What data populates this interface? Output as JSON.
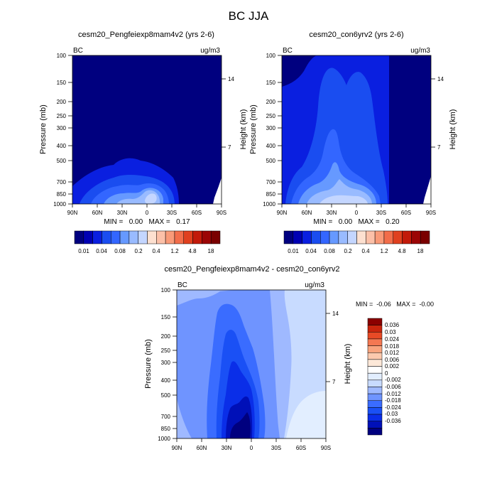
{
  "title": "BC JJA",
  "palette": {
    "absolute": [
      "#00007f",
      "#0000b3",
      "#0a1fe0",
      "#1a4df0",
      "#3366ff",
      "#6699ff",
      "#99bbff",
      "#c4d6ff",
      "#fde0d0",
      "#fcc0a8",
      "#f99a78",
      "#f26d4a",
      "#e0401f",
      "#c21a0a",
      "#9b0505",
      "#7a0000"
    ],
    "difference": [
      "#00007f",
      "#0010b8",
      "#0a2ee8",
      "#1a50f5",
      "#3a6cff",
      "#6f94ff",
      "#9fb9ff",
      "#c8dbff",
      "#e2eeff",
      "#ffffff",
      "#fde8d8",
      "#fcc9ae",
      "#f9a47e",
      "#f47852",
      "#e84a26",
      "#c9250d",
      "#8b0000"
    ]
  },
  "chart_data": [
    {
      "type": "heatmap",
      "panel": "left",
      "title": "cesm20_Pengfeiexp8mam4v2 (yrs 2-6)",
      "corner_left": "BC",
      "corner_right": "ug/m3",
      "ylabel": "Pressure (mb)",
      "ylabel_right": "Height (km)",
      "x_ticks": [
        "90N",
        "60N",
        "30N",
        "0",
        "30S",
        "60S",
        "90S"
      ],
      "y_ticks": [
        "100",
        "150",
        "200",
        "250",
        "300",
        "400",
        "500",
        "700",
        "850",
        "1000"
      ],
      "y_ticks_right": [
        "14",
        "7"
      ],
      "xlim": [
        90,
        -90
      ],
      "ylim": [
        1000,
        100
      ],
      "minmax": "MIN =   0.00   MAX =   0.17",
      "colorbar_labels": [
        "0.01",
        "0.04",
        "0.08",
        "0.2",
        "0.4",
        "1.2",
        "4.8",
        "18"
      ]
    },
    {
      "type": "heatmap",
      "panel": "right",
      "title": "cesm20_con6yrv2 (yrs 2-6)",
      "corner_left": "BC",
      "corner_right": "ug/m3",
      "ylabel": "Pressure (mb)",
      "ylabel_right": "Height (km)",
      "x_ticks": [
        "90N",
        "60N",
        "30N",
        "0",
        "30S",
        "60S",
        "90S"
      ],
      "y_ticks": [
        "100",
        "150",
        "200",
        "250",
        "300",
        "400",
        "500",
        "700",
        "850",
        "1000"
      ],
      "y_ticks_right": [
        "14",
        "7"
      ],
      "xlim": [
        90,
        -90
      ],
      "ylim": [
        1000,
        100
      ],
      "minmax": "MIN =   0.00   MAX =   0.20",
      "colorbar_labels": [
        "0.01",
        "0.04",
        "0.08",
        "0.2",
        "0.4",
        "1.2",
        "4.8",
        "18"
      ]
    },
    {
      "type": "heatmap",
      "panel": "difference",
      "title": "cesm20_Pengfeiexp8mam4v2 - cesm20_con6yrv2",
      "corner_left": "BC",
      "corner_right": "ug/m3",
      "ylabel": "Pressure (mb)",
      "ylabel_right": "Height (km)",
      "x_ticks": [
        "90N",
        "60N",
        "30N",
        "0",
        "30S",
        "60S",
        "90S"
      ],
      "y_ticks": [
        "100",
        "150",
        "200",
        "250",
        "300",
        "400",
        "500",
        "700",
        "850",
        "1000"
      ],
      "y_ticks_right": [
        "14",
        "7"
      ],
      "xlim": [
        90,
        -90
      ],
      "ylim": [
        1000,
        100
      ],
      "minmax": "MIN =  -0.06   MAX =  -0.00",
      "colorbar_labels": [
        "0.036",
        "0.03",
        "0.024",
        "0.018",
        "0.012",
        "0.006",
        "0.002",
        "0",
        "-0.002",
        "-0.006",
        "-0.012",
        "-0.018",
        "-0.024",
        "-0.03",
        "-0.036"
      ]
    }
  ]
}
